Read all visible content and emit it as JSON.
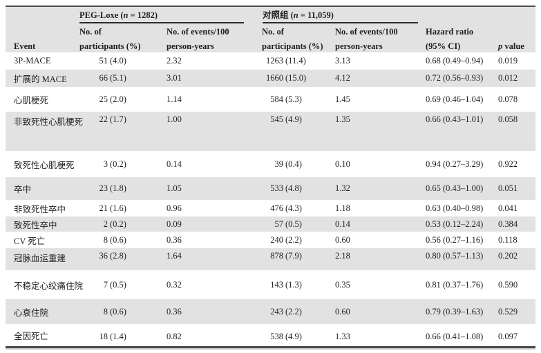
{
  "colors": {
    "stripe": "#e2e2e2",
    "rule_dark": "#4d4d4d",
    "rule_thin": "#2a2a2a",
    "text": "#1f1f1f"
  },
  "table": {
    "header": {
      "event": "Event",
      "group1_pre": "PEG-Loxe (",
      "group1_it": "n",
      "group1_post": " = 1282)",
      "group2_pre": "对照组  (",
      "group2_it": "n",
      "group2_post": " = 11,059)",
      "participants_l1": "No. of",
      "participants_l2": "participants (%)",
      "events_l1": "No. of events/100",
      "events_l2": "person-years",
      "hazard_l1": "Hazard ratio",
      "hazard_l2": "(95% CI)",
      "p_it": "p",
      "p_post": " value"
    },
    "rows": [
      {
        "event": "3P-MACE",
        "g1_participants": "51 (4.0)",
        "g1_rate": "2.32",
        "g2_participants": "1263 (11.4)",
        "g2_rate": "3.13",
        "hr": "0.68 (0.49–0.94)",
        "p": "0.019"
      },
      {
        "event": "扩展的 MACE",
        "g1_participants": "66 (5.1)",
        "g1_rate": "3.01",
        "g2_participants": "1660 (15.0)",
        "g2_rate": "4.12",
        "hr": "0.72 (0.56–0.93)",
        "p": "0.012"
      },
      {
        "event": "心肌梗死",
        "g1_participants": "25 (2.0)",
        "g1_rate": "1.14",
        "g2_participants": "584 (5.3)",
        "g2_rate": "1.45",
        "hr": "0.69 (0.46–1.04)",
        "p": "0.078"
      },
      {
        "event": "非致死性心肌梗死",
        "g1_participants": "22 (1.7)",
        "g1_rate": "1.00",
        "g2_participants": "545 (4.9)",
        "g2_rate": "1.35",
        "hr": "0.66 (0.43–1.01)",
        "p": "0.058"
      },
      {
        "event": "致死性心肌梗死",
        "g1_participants": "3 (0.2)",
        "g1_rate": "0.14",
        "g2_participants": "39 (0.4)",
        "g2_rate": "0.10",
        "hr": "0.94 (0.27–3.29)",
        "p": "0.922"
      },
      {
        "event": "卒中",
        "g1_participants": "23 (1.8)",
        "g1_rate": "1.05",
        "g2_participants": "533 (4.8)",
        "g2_rate": "1.32",
        "hr": "0.65 (0.43–1.00)",
        "p": "0.051"
      },
      {
        "event": "非致死性卒中",
        "g1_participants": "21 (1.6)",
        "g1_rate": "0.96",
        "g2_participants": "476 (4.3)",
        "g2_rate": "1.18",
        "hr": "0.63 (0.40–0.98)",
        "p": "0.041"
      },
      {
        "event": "致死性卒中",
        "g1_participants": "2 (0.2)",
        "g1_rate": "0.09",
        "g2_participants": "57 (0.5)",
        "g2_rate": "0.14",
        "hr": "0.53 (0.12–2.24)",
        "p": "0.384"
      },
      {
        "event": "CV 死亡",
        "g1_participants": "8 (0.6)",
        "g1_rate": "0.36",
        "g2_participants": "240 (2.2)",
        "g2_rate": "0.60",
        "hr": "0.56 (0.27–1.16)",
        "p": "0.118"
      },
      {
        "event": "冠脉血运重建",
        "g1_participants": "36 (2.8)",
        "g1_rate": "1.64",
        "g2_participants": "878 (7.9)",
        "g2_rate": "2.18",
        "hr": "0.80 (0.57–1.13)",
        "p": "0.202"
      },
      {
        "event": "不稳定心绞痛住院",
        "g1_participants": "7 (0.5)",
        "g1_rate": "0.32",
        "g2_participants": "143 (1.3)",
        "g2_rate": "0.35",
        "hr": "0.81 (0.37–1.76)",
        "p": "0.590"
      },
      {
        "event": "心衰住院",
        "g1_participants": "8 (0.6)",
        "g1_rate": "0.36",
        "g2_participants": "243 (2.2)",
        "g2_rate": "0.60",
        "hr": "0.79 (0.39–1.63)",
        "p": "0.529"
      },
      {
        "event": "全因死亡",
        "g1_participants": "18 (1.4)",
        "g1_rate": "0.82",
        "g2_participants": "538 (4.9)",
        "g2_rate": "1.33",
        "hr": "0.66 (0.41–1.08)",
        "p": "0.097"
      }
    ]
  }
}
